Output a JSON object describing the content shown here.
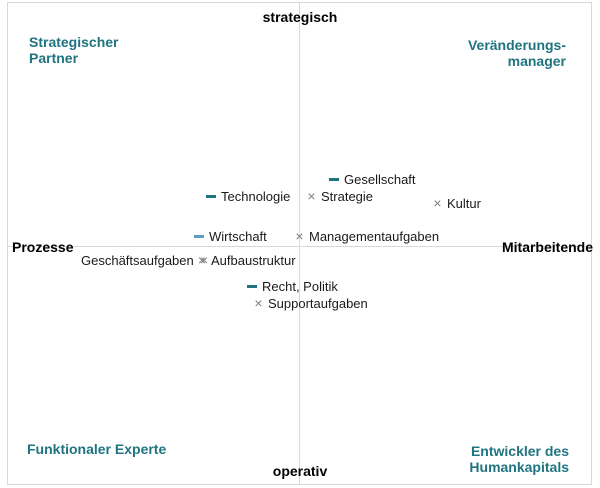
{
  "axes": {
    "top": "strategisch",
    "bottom": "operativ",
    "left": "Prozesse",
    "right": "Mitarbeitende"
  },
  "quadrants": {
    "top_left": [
      "Strategischer",
      "Partner"
    ],
    "top_right": [
      "Veränderungs-",
      "manager"
    ],
    "bottom_left": [
      "Funktionaler Experte"
    ],
    "bottom_right": [
      "Entwickler des",
      "Humankapitals"
    ]
  },
  "colors": {
    "teal": "#1f7480",
    "light_blue": "#5e9cc2",
    "gray_marker": "#7f7f7f",
    "grid": "#d9d9d9"
  },
  "points": {
    "gesellschaft": {
      "label": "Gesellschaft",
      "marker": "teal-dash"
    },
    "technologie": {
      "label": "Technologie",
      "marker": "teal-dash"
    },
    "strategie": {
      "label": "Strategie",
      "marker": "gray-x"
    },
    "kultur": {
      "label": "Kultur",
      "marker": "gray-x"
    },
    "wirtschaft": {
      "label": "Wirtschaft",
      "marker": "light-blue-dash"
    },
    "managementaufgaben": {
      "label": "Managementaufgaben",
      "marker": "gray-x"
    },
    "geschaeftsaufgaben": {
      "label": "Geschäftsaufgaben",
      "marker": "gray-x"
    },
    "aufbaustruktur": {
      "label": "Aufbaustruktur",
      "marker": "gray-x"
    },
    "recht_politik": {
      "label": "Recht, Politik",
      "marker": "teal-dash"
    },
    "supportaufgaben": {
      "label": "Supportaufgaben",
      "marker": "gray-x"
    }
  }
}
